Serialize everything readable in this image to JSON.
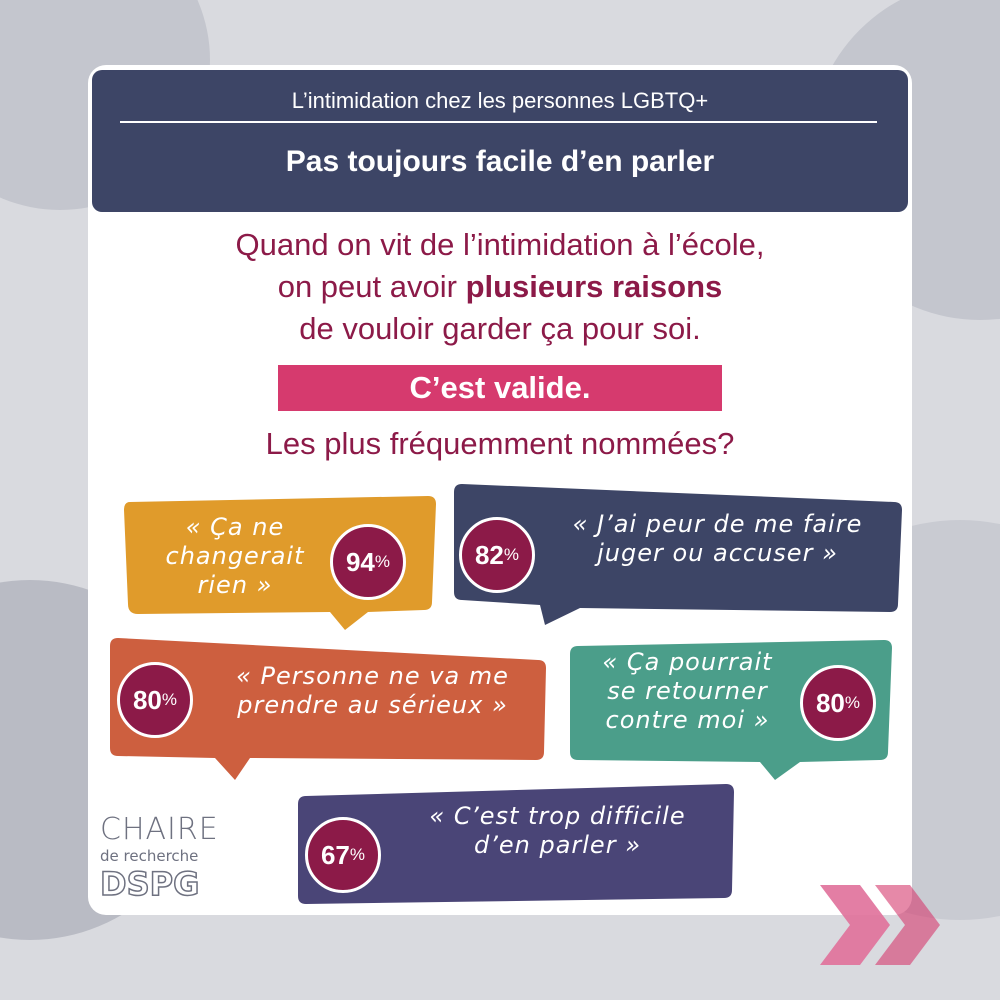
{
  "header": {
    "subtitle": "L’intimidation chez les personnes LGBTQ+",
    "title": "Pas toujours facile d’en parler"
  },
  "intro": {
    "line1": "Quand on vit de l’intimidation à l’école,",
    "line2_start": "on peut avoir ",
    "line2_bold": "plusieurs raisons",
    "line3": "de vouloir garder ça pour soi."
  },
  "banner": "C’est valide.",
  "question": "Les plus fréquemment nommées?",
  "reasons": [
    {
      "lines": [
        "« Ça ne",
        "changerait",
        "rien »"
      ],
      "value": 94,
      "unit": "%"
    },
    {
      "lines": [
        "« J’ai peur de me faire",
        "juger ou accuser »"
      ],
      "value": 82,
      "unit": "%"
    },
    {
      "lines": [
        "« Personne ne va me",
        "prendre au sérieux »"
      ],
      "value": 80,
      "unit": "%"
    },
    {
      "lines": [
        "« Ça pourrait",
        "se retourner",
        "contre moi »"
      ],
      "value": 80,
      "unit": "%"
    },
    {
      "lines": [
        "« C’est trop difficile",
        "d’en parler »"
      ],
      "value": 67,
      "unit": "%"
    }
  ],
  "logo": {
    "line1": "CHAIRE",
    "line2": "de recherche",
    "line3": "DSPG"
  }
}
